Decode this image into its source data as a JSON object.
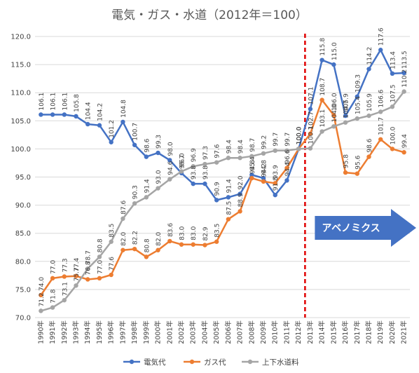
{
  "chart_data": {
    "type": "line",
    "title": "電気・ガス・水道（2012年＝100）",
    "categories": [
      "1990年",
      "1991年",
      "1992年",
      "1993年",
      "1994年",
      "1995年",
      "1996年",
      "1997年",
      "1998年",
      "1999年",
      "2000年",
      "2001年",
      "2002年",
      "2003年",
      "2004年",
      "2005年",
      "2006年",
      "2007年",
      "2008年",
      "2009年",
      "2010年",
      "2011年",
      "2012年",
      "2013年",
      "2014年",
      "2015年",
      "2016年",
      "2017年",
      "2018年",
      "2019年",
      "2020年",
      "2021年"
    ],
    "series": [
      {
        "name": "電気代",
        "color": "#4472c4",
        "values": [
          106.1,
          106.1,
          106.1,
          105.8,
          104.4,
          104.2,
          101.2,
          104.8,
          100.7,
          98.6,
          99.3,
          98.0,
          95.7,
          93.8,
          93.8,
          90.9,
          91.4,
          92.0,
          95.4,
          94.8,
          91.8,
          94.4,
          100.0,
          107.1,
          115.8,
          115.0,
          105.9,
          109.3,
          114.2,
          117.6,
          113.4,
          113.5
        ]
      },
      {
        "name": "ガス代",
        "color": "#ed7d31",
        "values": [
          74.0,
          77.0,
          77.3,
          77.4,
          76.8,
          77.0,
          77.6,
          82.0,
          82.2,
          80.8,
          82.0,
          83.6,
          83.0,
          83.0,
          82.9,
          83.5,
          87.5,
          88.9,
          94.8,
          94.2,
          93.9,
          96.6,
          100.0,
          102.7,
          108.7,
          106.0,
          95.8,
          95.6,
          98.6,
          101.7,
          100.0,
          99.4
        ]
      },
      {
        "name": "上下水道料",
        "color": "#a5a5a5",
        "values": [
          71.2,
          71.8,
          73.1,
          75.7,
          78.7,
          80.8,
          83.5,
          87.6,
          90.3,
          91.4,
          93.0,
          94.6,
          96.0,
          96.9,
          97.3,
          97.6,
          98.4,
          98.4,
          98.7,
          99.2,
          99.7,
          99.7,
          100.0,
          100.1,
          103.1,
          104.0,
          104.7,
          105.4,
          105.9,
          106.6,
          107.5,
          110.2
        ]
      }
    ],
    "ylim": [
      70.0,
      120.0
    ],
    "yticks": [
      "70.0",
      "75.0",
      "80.0",
      "85.0",
      "90.0",
      "95.0",
      "100.0",
      "105.0",
      "110.0",
      "115.0",
      "120.0"
    ],
    "grid": true,
    "legend_position": "bottom",
    "annotation": {
      "text": "アベノミクス",
      "start_category": "2012年",
      "marker": "red-dashed-vertical-line",
      "arrow_color": "#4472c4"
    }
  }
}
